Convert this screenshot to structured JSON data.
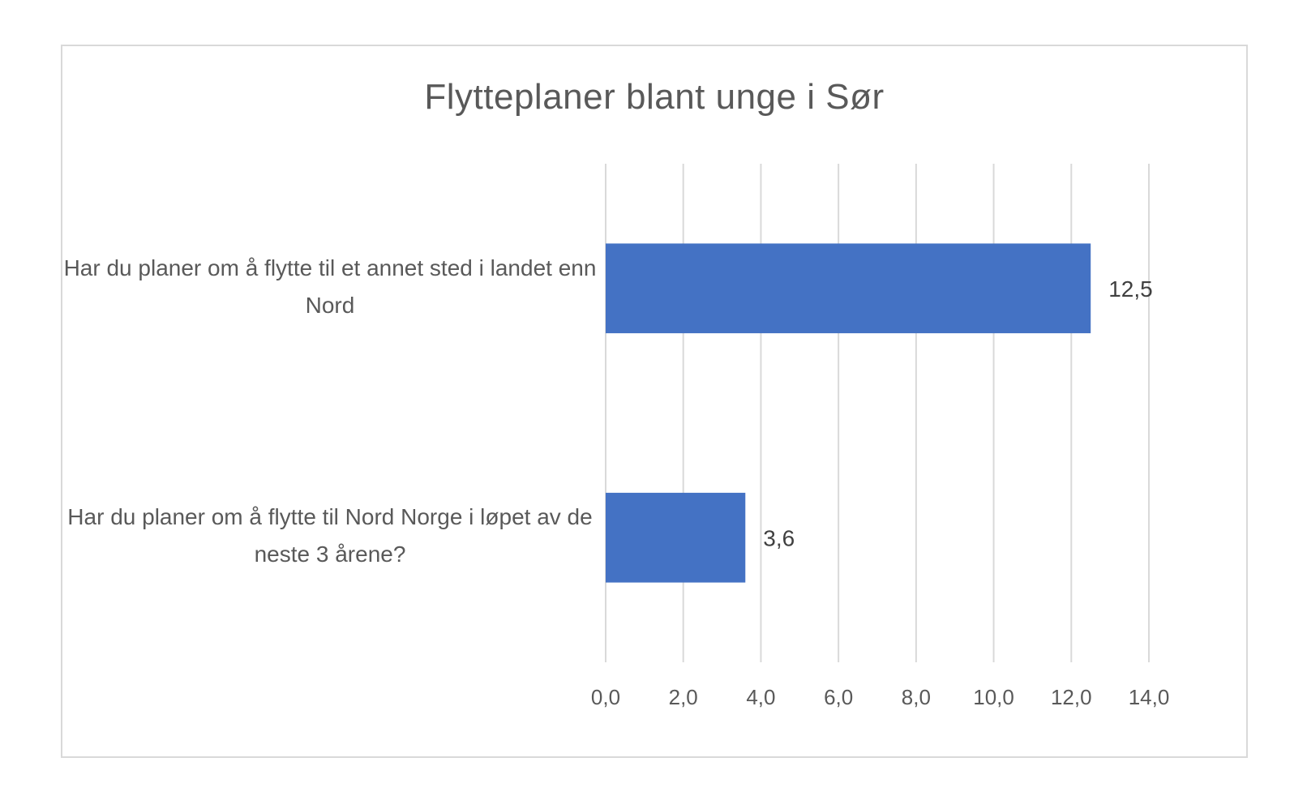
{
  "chart_data": {
    "type": "bar",
    "orientation": "horizontal",
    "title": "Flytteplaner blant unge i Sør",
    "xlabel": "",
    "ylabel": "",
    "categories": [
      "Har du planer om å flytte til et annet sted i landet enn Nord",
      "Har du planer om å flytte til Nord Norge i løpet av de neste 3 årene?"
    ],
    "values": [
      12.5,
      3.6
    ],
    "data_labels": [
      "12,5",
      "3,6"
    ],
    "xlim": [
      0,
      14
    ],
    "ticks": [
      0,
      2,
      4,
      6,
      8,
      10,
      12,
      14
    ],
    "tick_labels": [
      "0,0",
      "2,0",
      "4,0",
      "6,0",
      "8,0",
      "10,0",
      "12,0",
      "14,0"
    ],
    "grid": "vertical",
    "legend": "none",
    "bar_color": "#4472c4",
    "grid_color": "#d9d9d9",
    "text_color": "#595959"
  }
}
